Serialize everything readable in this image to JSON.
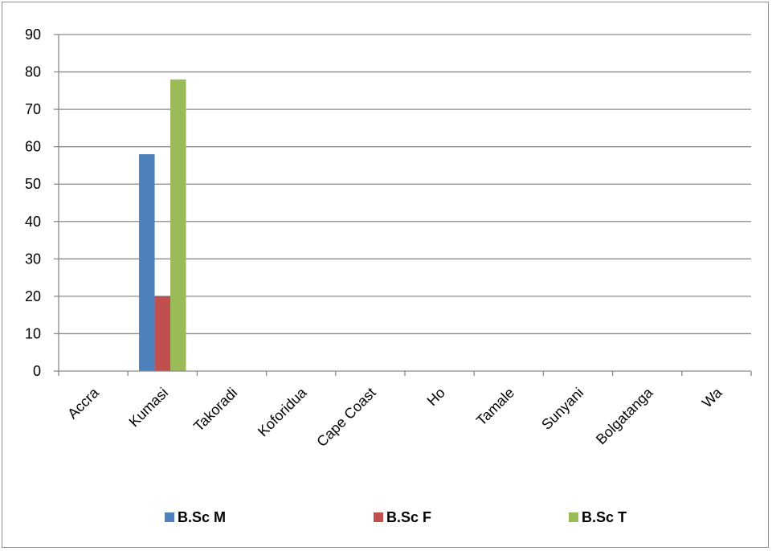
{
  "chart_data": {
    "type": "bar",
    "title": "",
    "xlabel": "",
    "ylabel": "",
    "ylim": [
      0,
      90
    ],
    "yticks": [
      0,
      10,
      20,
      30,
      40,
      50,
      60,
      70,
      80,
      90
    ],
    "grid": true,
    "legend_position": "bottom",
    "categories": [
      "Accra",
      "Kumasi",
      "Takoradi",
      "Koforidua",
      "Cape Coast",
      "Ho",
      "Tamale",
      "Sunyani",
      "Bolgatanga",
      "Wa"
    ],
    "series": [
      {
        "name": "B.Sc M",
        "color": "#4F81BD",
        "values": [
          0,
          58,
          0,
          0,
          0,
          0,
          0,
          0,
          0,
          0
        ]
      },
      {
        "name": "B.Sc F",
        "color": "#C0504D",
        "values": [
          0,
          20,
          0,
          0,
          0,
          0,
          0,
          0,
          0,
          0
        ]
      },
      {
        "name": "B.Sc T",
        "color": "#9BBB59",
        "values": [
          0,
          78,
          0,
          0,
          0,
          0,
          0,
          0,
          0,
          0
        ]
      }
    ]
  }
}
